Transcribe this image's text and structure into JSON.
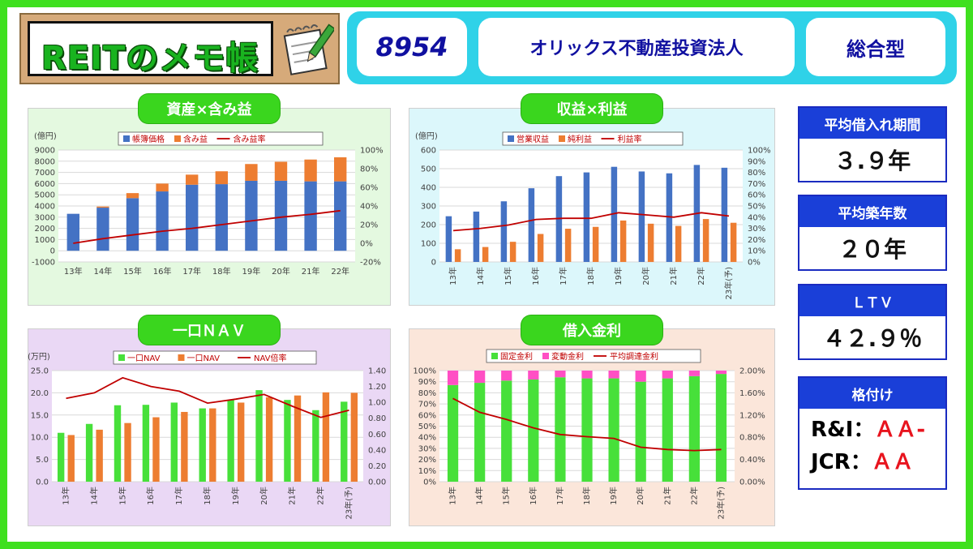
{
  "logo": {
    "title": "REITのメモ帳"
  },
  "header": {
    "code": "8954",
    "name": "オリックス不動産投資法人",
    "type": "総合型"
  },
  "stats": [
    {
      "label": "平均借入れ期間",
      "value": "３.９年"
    },
    {
      "label": "平均築年数",
      "value": "２０年"
    },
    {
      "label": "ＬＴＶ",
      "value": "４２.９％"
    },
    {
      "label": "格付け",
      "lines": [
        {
          "agency": "R&I：",
          "rating": "ＡＡ-"
        },
        {
          "agency": "JCR：",
          "rating": "ＡＡ"
        }
      ]
    }
  ],
  "colors": {
    "blue": "#4472c4",
    "orange": "#ed7d31",
    "green": "#47e03a",
    "pink": "#ff4fc4",
    "red": "#c00000",
    "accent": "#3ad61e"
  },
  "chart_data": [
    {
      "id": "assets",
      "type": "bar",
      "title": "資産×含み益",
      "yunit": "(億円)",
      "categories": [
        "13年",
        "14年",
        "15年",
        "16年",
        "17年",
        "18年",
        "19年",
        "20年",
        "21年",
        "22年"
      ],
      "series": [
        {
          "name": "帳簿価格",
          "kind": "stack",
          "values": [
            3300,
            3850,
            4700,
            5300,
            5900,
            5950,
            6250,
            6250,
            6200,
            6200
          ]
        },
        {
          "name": "含み益",
          "kind": "stack",
          "values": [
            0,
            100,
            450,
            700,
            900,
            1150,
            1500,
            1700,
            1950,
            2150
          ]
        },
        {
          "name": "含み益率",
          "kind": "line",
          "axis": "right",
          "values": [
            0,
            5,
            9,
            13,
            16,
            20,
            24,
            28,
            31,
            35
          ]
        }
      ],
      "ylim": [
        -1000,
        9000
      ],
      "yticks": [
        -1000,
        0,
        1000,
        2000,
        3000,
        4000,
        5000,
        6000,
        7000,
        8000,
        9000
      ],
      "y2lim": [
        -20,
        100
      ],
      "y2ticks": [
        "-20%",
        "0%",
        "20%",
        "40%",
        "60%",
        "80%",
        "100%"
      ]
    },
    {
      "id": "earnings",
      "type": "bar",
      "title": "収益×利益",
      "yunit": "(億円)",
      "categories": [
        "13年",
        "14年",
        "15年",
        "16年",
        "17年",
        "18年",
        "19年",
        "20年",
        "21年",
        "22年",
        "23年(予)"
      ],
      "series": [
        {
          "name": "営業収益",
          "kind": "bar",
          "values": [
            245,
            270,
            325,
            395,
            460,
            480,
            510,
            485,
            475,
            520,
            505
          ]
        },
        {
          "name": "純利益",
          "kind": "bar",
          "values": [
            68,
            80,
            108,
            150,
            178,
            188,
            222,
            205,
            193,
            230,
            210
          ]
        },
        {
          "name": "利益率",
          "kind": "line",
          "axis": "right",
          "values": [
            28,
            30,
            33,
            38,
            39,
            39,
            44,
            42,
            40,
            44,
            41
          ]
        }
      ],
      "ylim": [
        0,
        600
      ],
      "yticks": [
        0,
        100,
        200,
        300,
        400,
        500,
        600
      ],
      "y2lim": [
        0,
        100
      ],
      "y2ticks": [
        "0%",
        "10%",
        "20%",
        "30%",
        "40%",
        "50%",
        "60%",
        "70%",
        "80%",
        "90%",
        "100%"
      ]
    },
    {
      "id": "nav",
      "type": "bar",
      "title": "一口ＮＡＶ",
      "yunit": "(万円)",
      "categories": [
        "13年",
        "14年",
        "15年",
        "16年",
        "17年",
        "18年",
        "19年",
        "20年",
        "21年",
        "22年",
        "23年(予)"
      ],
      "series": [
        {
          "name": "一口NAV",
          "kind": "bar",
          "values": [
            11.0,
            13.0,
            17.2,
            17.3,
            17.8,
            16.5,
            18.4,
            20.6,
            18.4,
            16.1,
            18.0
          ]
        },
        {
          "name": "一口NAV",
          "kind": "bar",
          "values": [
            10.5,
            11.7,
            13.2,
            14.5,
            15.7,
            16.5,
            17.8,
            19.0,
            19.4,
            20.1,
            20.0
          ]
        },
        {
          "name": "NAV倍率",
          "kind": "line",
          "axis": "right",
          "values": [
            1.05,
            1.12,
            1.31,
            1.2,
            1.14,
            0.99,
            1.04,
            1.1,
            0.95,
            0.81,
            0.9
          ]
        }
      ],
      "ylim": [
        0,
        25
      ],
      "yticks": [
        "0.0",
        "5.0",
        "10.0",
        "15.0",
        "20.0",
        "25.0"
      ],
      "y2lim": [
        0,
        1.4
      ],
      "y2ticks": [
        "0.00",
        "0.20",
        "0.40",
        "0.60",
        "0.80",
        "1.00",
        "1.20",
        "1.40"
      ]
    },
    {
      "id": "rates",
      "type": "bar",
      "title": "借入金利",
      "yunit": "",
      "categories": [
        "13年",
        "14年",
        "15年",
        "16年",
        "17年",
        "18年",
        "19年",
        "20年",
        "21年",
        "22年",
        "23年(予)"
      ],
      "series": [
        {
          "name": "固定金利",
          "kind": "stack",
          "values": [
            87,
            89,
            91,
            92,
            94,
            93,
            93,
            90,
            93,
            95,
            97
          ]
        },
        {
          "name": "変動金利",
          "kind": "stack",
          "values": [
            13,
            11,
            9,
            8,
            6,
            7,
            7,
            10,
            7,
            5,
            3
          ]
        },
        {
          "name": "平均調達金利",
          "kind": "line",
          "axis": "right",
          "values": [
            1.5,
            1.25,
            1.12,
            0.97,
            0.85,
            0.81,
            0.78,
            0.62,
            0.58,
            0.56,
            0.58
          ]
        }
      ],
      "ylim": [
        0,
        100
      ],
      "yticks": [
        "0%",
        "10%",
        "20%",
        "30%",
        "40%",
        "50%",
        "60%",
        "70%",
        "80%",
        "90%",
        "100%"
      ],
      "y2lim": [
        0,
        2
      ],
      "y2ticks": [
        "0.00%",
        "0.40%",
        "0.80%",
        "1.20%",
        "1.60%",
        "2.00%"
      ]
    }
  ]
}
